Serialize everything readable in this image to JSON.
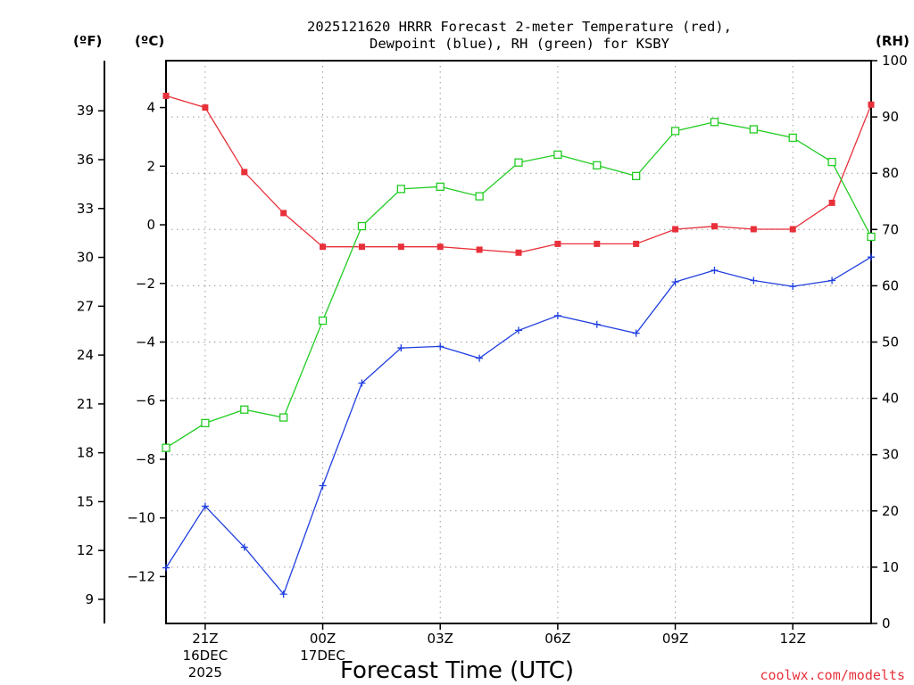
{
  "chart_data": {
    "type": "line",
    "title_line1": "2025121620 HRRR Forecast 2-meter Temperature (red),",
    "title_line2": "Dewpoint (blue), RH (green) for KSBY",
    "xlabel": "Forecast Time (UTC)",
    "credit": "coolwx.com/modelts",
    "units": {
      "fahrenheit": "(ºF)",
      "celsius": "(ºC)",
      "rh": "(RH)"
    },
    "x_hours": [
      0,
      1,
      2,
      3,
      4,
      5,
      6,
      7,
      8,
      9,
      10,
      11,
      12,
      13,
      14,
      15,
      16,
      17,
      18
    ],
    "x_ticks": [
      {
        "hour": 1,
        "lines": [
          "21Z",
          "16DEC",
          "2025"
        ]
      },
      {
        "hour": 4,
        "lines": [
          "00Z",
          "17DEC"
        ]
      },
      {
        "hour": 7,
        "lines": [
          "03Z"
        ]
      },
      {
        "hour": 10,
        "lines": [
          "06Z"
        ]
      },
      {
        "hour": 13,
        "lines": [
          "09Z"
        ]
      },
      {
        "hour": 16,
        "lines": [
          "12Z"
        ]
      }
    ],
    "y_celsius_range": [
      -13.6,
      5.6
    ],
    "y_celsius_ticks": [
      4,
      2,
      0,
      -2,
      -4,
      -6,
      -8,
      -10,
      -12
    ],
    "y_fahrenheit_ticks": [
      39,
      36,
      33,
      30,
      27,
      24,
      21,
      18,
      15,
      12,
      9
    ],
    "y_rh_range": [
      0,
      100
    ],
    "y_rh_ticks": [
      100,
      90,
      80,
      70,
      60,
      50,
      40,
      30,
      20,
      10,
      0
    ],
    "grid": true,
    "series": [
      {
        "name": "Temperature",
        "color": "#e8303a",
        "axis": "celsius",
        "marker": "filled-square",
        "values": [
          4.4,
          4.0,
          1.8,
          0.4,
          -0.75,
          -0.75,
          -0.75,
          -0.75,
          -0.85,
          -0.95,
          -0.65,
          -0.65,
          -0.65,
          -0.15,
          -0.05,
          -0.15,
          -0.15,
          0.75,
          4.1
        ]
      },
      {
        "name": "Dewpoint",
        "color": "#1f3ee0",
        "axis": "celsius",
        "marker": "plus",
        "values": [
          -11.7,
          -9.6,
          -11.0,
          -12.6,
          -8.9,
          -5.4,
          -4.2,
          -4.15,
          -4.55,
          -3.6,
          -3.1,
          -3.4,
          -3.7,
          -1.95,
          -1.55,
          -1.9,
          -2.1,
          -1.9,
          -1.1
        ]
      },
      {
        "name": "RH",
        "color": "#22cc22",
        "axis": "rh",
        "marker": "open-square",
        "values": [
          31.2,
          35.6,
          38.0,
          36.6,
          53.8,
          70.6,
          77.2,
          77.6,
          75.9,
          81.9,
          83.3,
          81.4,
          79.5,
          87.5,
          89.1,
          87.8,
          86.3,
          82.0,
          68.7
        ]
      }
    ]
  }
}
